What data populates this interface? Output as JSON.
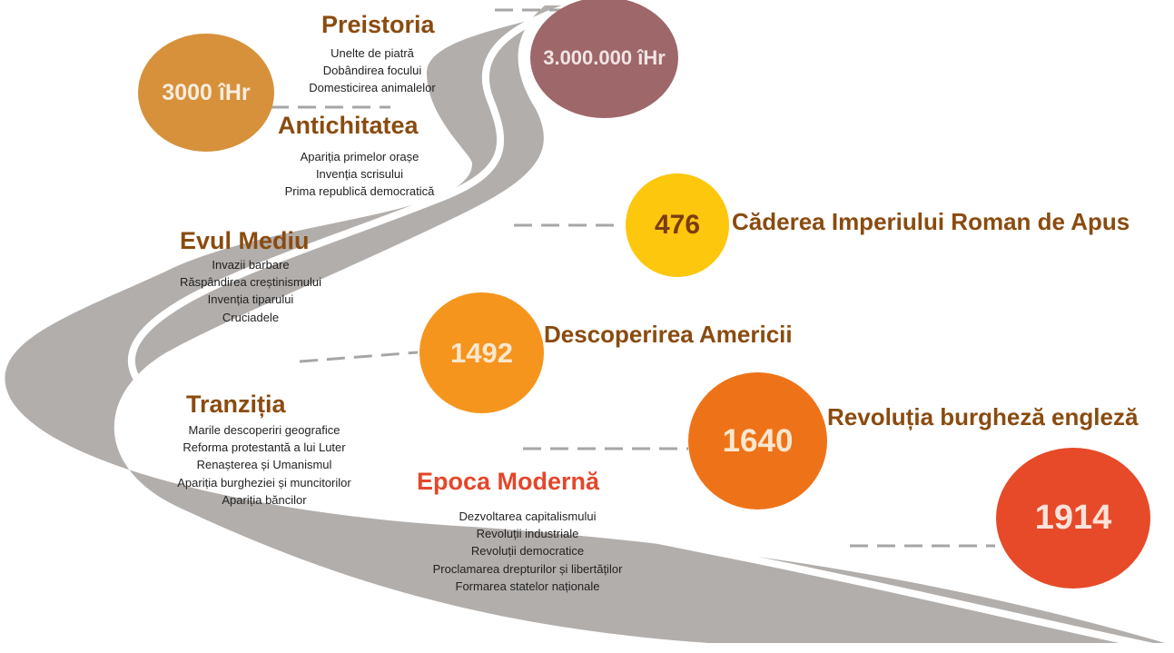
{
  "colors": {
    "road": "#b2aeab",
    "road_line": "#ffffff",
    "connector": "#a6a6a6",
    "era_title": "#8a4b0f",
    "era_title_modern": "#e3472a",
    "event_label": "#8a4b0f"
  },
  "milestones": [
    {
      "id": "m1",
      "year": "3.000.000 îHr",
      "color": "#9e6769",
      "text_color": "#f2e4e4"
    },
    {
      "id": "m2",
      "year": "3000 îHr",
      "color": "#d6913a",
      "text_color": "#f7ecdf"
    },
    {
      "id": "m3",
      "year": "476",
      "color": "#fdc70d",
      "text_color": "#7b3b12",
      "label": "Căderea Imperiului Roman de Apus"
    },
    {
      "id": "m4",
      "year": "1492",
      "color": "#f5951e",
      "text_color": "#fbe7cf",
      "label": "Descoperirea Americii"
    },
    {
      "id": "m5",
      "year": "1640",
      "color": "#ee7318",
      "text_color": "#fbe7cf",
      "label": "Revoluția burgheză engleză"
    },
    {
      "id": "m6",
      "year": "1914",
      "color": "#e64a28",
      "text_color": "#fbe2da"
    }
  ],
  "eras": [
    {
      "id": "preistoria",
      "title": "Preistoria",
      "items": [
        "Unelte de piatră",
        "Dobândirea focului",
        "Domesticirea animalelor"
      ]
    },
    {
      "id": "antichitatea",
      "title": "Antichitatea",
      "items": [
        "Apariția primelor orașe",
        "Invenția scrisului",
        "Prima republică democratică"
      ]
    },
    {
      "id": "evul-mediu",
      "title": "Evul Mediu",
      "items": [
        "Invazii barbare",
        "Răspândirea creștinismului",
        "Invenția tiparului",
        "Cruciadele"
      ]
    },
    {
      "id": "tranzitia",
      "title": "Tranziția",
      "items": [
        "Marile descoperiri geografice",
        "Reforma protestantă a lui Luter",
        "Renașterea și Umanismul",
        "Apariția burgheziei și muncitorilor",
        "Apariția băncilor"
      ]
    },
    {
      "id": "epoca-moderna",
      "title": "Epoca Modernă",
      "items": [
        "Dezvoltarea capitalismului",
        "Revoluții industriale",
        "Revoluții democratice",
        "Proclamarea drepturilor și libertăților",
        "Formarea statelor naționale"
      ]
    }
  ]
}
